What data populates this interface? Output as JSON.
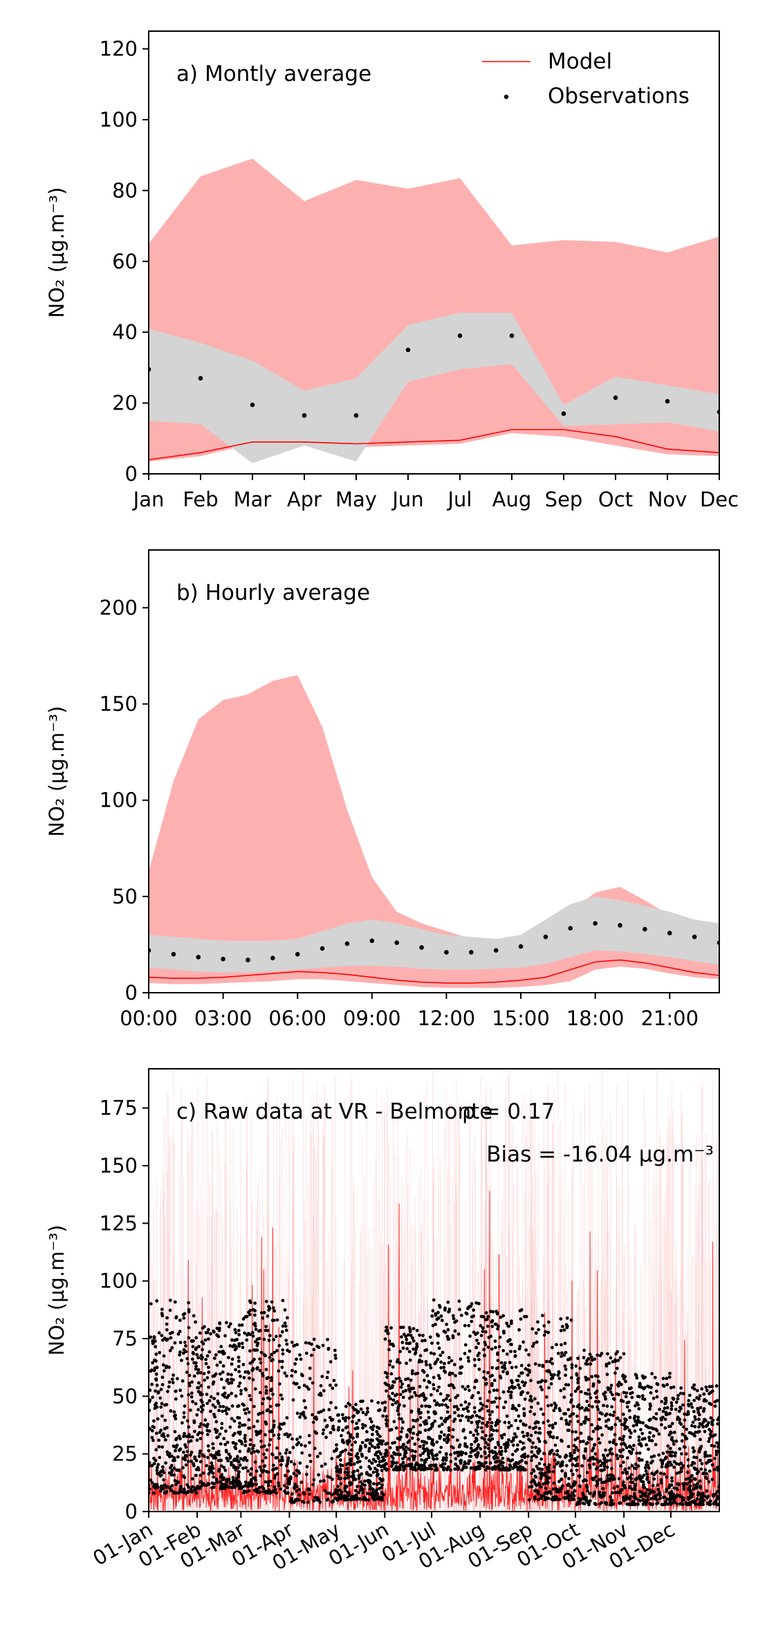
{
  "chart_data": [
    {
      "type": "line",
      "title": "a) Montly average",
      "ylabel": "NO₂ (μg.m⁻³)",
      "ylim": [
        0,
        125
      ],
      "yticks": [
        0,
        20,
        40,
        60,
        80,
        100,
        120
      ],
      "categories": [
        "Jan",
        "Feb",
        "Mar",
        "Apr",
        "May",
        "Jun",
        "Jul",
        "Aug",
        "Sep",
        "Oct",
        "Nov",
        "Dec"
      ],
      "legend": {
        "position": "top-right",
        "entries": [
          "Model",
          "Observations"
        ]
      },
      "series": [
        {
          "name": "Model",
          "kind": "line",
          "color": "#ff0000",
          "values": [
            4,
            6,
            9,
            9,
            8.5,
            9,
            9.5,
            12.5,
            12.5,
            10.5,
            7,
            6
          ]
        },
        {
          "name": "Observations",
          "kind": "points",
          "color": "#000000",
          "values": [
            29.5,
            27,
            19.5,
            16.5,
            16.5,
            35,
            39,
            39,
            17,
            21.5,
            20.5,
            17.5
          ]
        }
      ],
      "bands": [
        {
          "of": "Model",
          "color": "#fdb0b0",
          "lower": [
            3.5,
            5,
            8.5,
            8,
            7.5,
            8,
            8.5,
            11.5,
            10.5,
            8,
            5.5,
            5
          ],
          "upper": [
            65,
            84,
            89,
            77,
            83,
            80.5,
            83.5,
            64.5,
            66,
            65.5,
            62.5,
            67
          ]
        },
        {
          "of": "Observations",
          "color": "#d4d4d4",
          "lower": [
            15,
            14,
            3,
            8,
            3.5,
            26,
            29.5,
            31,
            13.5,
            14,
            14.5,
            12
          ],
          "upper": [
            41,
            37,
            32,
            23.5,
            27,
            42,
            45.5,
            45.5,
            19.5,
            27.5,
            25,
            22.5
          ]
        }
      ]
    },
    {
      "type": "line",
      "title": "b) Hourly average",
      "ylabel": "NO₂ (μg.m⁻³)",
      "ylim": [
        0,
        230
      ],
      "yticks": [
        0,
        50,
        100,
        150,
        200
      ],
      "xticks": [
        "00:00",
        "03:00",
        "06:00",
        "09:00",
        "12:00",
        "15:00",
        "18:00",
        "21:00"
      ],
      "x": [
        0,
        1,
        2,
        3,
        4,
        5,
        6,
        7,
        8,
        9,
        10,
        11,
        12,
        13,
        14,
        15,
        16,
        17,
        18,
        19,
        20,
        21,
        22,
        23
      ],
      "series": [
        {
          "name": "Model",
          "kind": "line",
          "color": "#ff0000",
          "values": [
            8,
            7.5,
            7.5,
            8,
            9,
            10,
            11,
            10.5,
            9.5,
            8,
            6.5,
            5.5,
            5,
            5,
            5.5,
            6.5,
            8,
            12,
            16,
            17,
            15.5,
            13,
            10.5,
            9
          ]
        },
        {
          "name": "Observations",
          "kind": "points",
          "color": "#000000",
          "values": [
            22,
            20,
            18.5,
            17.5,
            17,
            18,
            20,
            23,
            25.5,
            27,
            26,
            23.5,
            21,
            21,
            22,
            24,
            29,
            33.5,
            36,
            35,
            33,
            31,
            29,
            26
          ]
        }
      ],
      "bands": [
        {
          "of": "Model",
          "color": "#fdb0b0",
          "lower": [
            5,
            4.5,
            4.5,
            5,
            5.5,
            6,
            7,
            7,
            6,
            5,
            4,
            3,
            2.5,
            2.5,
            2.5,
            3,
            4,
            6,
            12,
            13.5,
            12.5,
            10,
            8,
            7
          ],
          "upper": [
            63,
            110,
            142,
            152,
            155,
            162,
            165,
            138,
            95,
            60,
            42,
            36,
            32,
            28,
            24,
            23,
            30,
            42,
            52,
            55,
            48,
            40,
            37,
            35
          ]
        },
        {
          "of": "Observations",
          "color": "#d4d4d4",
          "lower": [
            13,
            12,
            11,
            10.5,
            10.5,
            11,
            12,
            13,
            14,
            14,
            13.5,
            12.5,
            12,
            12,
            12.5,
            13,
            15,
            18.5,
            22,
            21.5,
            20,
            18.5,
            16.5,
            14.5
          ],
          "upper": [
            30,
            29,
            28,
            27,
            27,
            27,
            28,
            32,
            36,
            38,
            36,
            33,
            30,
            29,
            28,
            30,
            38,
            46,
            50,
            48,
            45,
            42,
            38,
            36
          ]
        }
      ]
    },
    {
      "type": "line",
      "title": "c) Raw data at VR - Belmonte",
      "ylabel": "NO₂ (μg.m⁻³)",
      "ylim": [
        0,
        192
      ],
      "yticks": [
        0,
        25,
        50,
        75,
        100,
        125,
        150,
        175
      ],
      "xticks": [
        "01-Jan",
        "01-Feb",
        "01-Mar",
        "01-Apr",
        "01-May",
        "01-Jun",
        "01-Jul",
        "01-Aug",
        "01-Sep",
        "01-Oct",
        "01-Nov",
        "01-Dec"
      ],
      "annotations": [
        "ρ = 0.17",
        "Bias = -16.04 μg.m⁻³"
      ],
      "series": [
        {
          "name": "Model",
          "kind": "line",
          "color": "#ff0000",
          "typical_range": [
            0,
            30
          ],
          "peaks_up_to": 140
        },
        {
          "name": "Observations",
          "kind": "points",
          "color": "#000000",
          "monthly_range": [
            [
              8,
              92
            ],
            [
              10,
              82
            ],
            [
              8,
              92
            ],
            [
              4,
              75
            ],
            [
              5,
              48
            ],
            [
              18,
              80
            ],
            [
              18,
              92
            ],
            [
              18,
              88
            ],
            [
              5,
              85
            ],
            [
              3,
              70
            ],
            [
              3,
              60
            ],
            [
              3,
              55
            ]
          ]
        }
      ],
      "bands": [
        {
          "of": "Model",
          "color": "#fdb0b0",
          "note": "hourly spread exceeds the axis"
        }
      ]
    }
  ]
}
